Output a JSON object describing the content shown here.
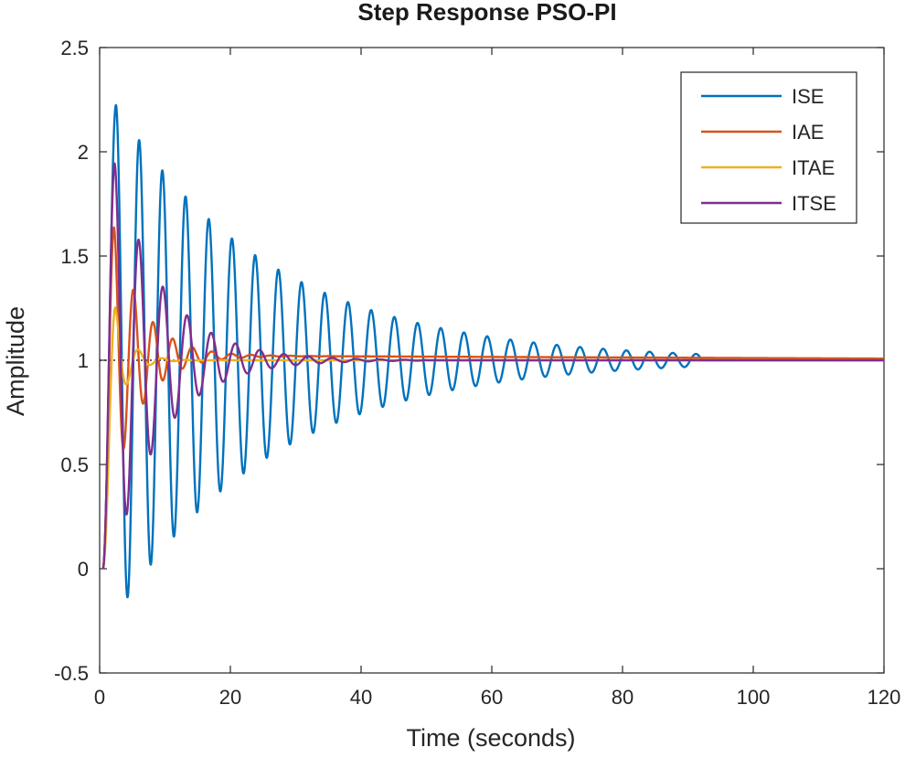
{
  "chart_data": {
    "type": "line",
    "title": "Step Response PSO-PI",
    "xlabel": "Time (seconds)",
    "ylabel": "Amplitude",
    "xlim": [
      0,
      120
    ],
    "ylim": [
      -0.5,
      2.5
    ],
    "xticks": [
      0,
      20,
      40,
      60,
      80,
      100,
      120
    ],
    "yticks": [
      -0.5,
      0,
      0.5,
      1,
      1.5,
      2,
      2.5
    ],
    "xtick_labels": [
      "0",
      "20",
      "40",
      "60",
      "80",
      "100",
      "120"
    ],
    "ytick_labels": [
      "-0.5",
      "0",
      "0.5",
      "1",
      "1.5",
      "2",
      "2.5"
    ],
    "reference_line": 1,
    "legend_position": "top-right",
    "series": [
      {
        "name": "ISE",
        "color": "#0072BD",
        "model": {
          "type": "oscillatory",
          "start": 0.5,
          "final": 1.0,
          "peak_time": 2.5,
          "period": 3.55,
          "overshoot": 1.33,
          "decay_time": 24,
          "settle_time": 92
        }
      },
      {
        "name": "IAE",
        "color": "#D95319",
        "model": {
          "type": "oscillatory",
          "start": 0.5,
          "final": 1.02,
          "peak_time": 2.2,
          "period": 3.0,
          "overshoot": 0.9,
          "decay_time": 4.5,
          "settle_time": 120
        }
      },
      {
        "name": "ITAE",
        "color": "#EDB120",
        "model": {
          "type": "oscillatory",
          "start": 0.5,
          "final": 1.0,
          "peak_time": 2.4,
          "period": 3.6,
          "overshoot": 0.6,
          "decay_time": 2.2,
          "settle_time": 30
        }
      },
      {
        "name": "ITSE",
        "color": "#7E2F8E",
        "model": {
          "type": "oscillatory",
          "start": 0.5,
          "final": 1.0,
          "peak_time": 2.3,
          "period": 3.7,
          "overshoot": 1.2,
          "decay_time": 7.5,
          "settle_time": 50
        }
      }
    ]
  }
}
